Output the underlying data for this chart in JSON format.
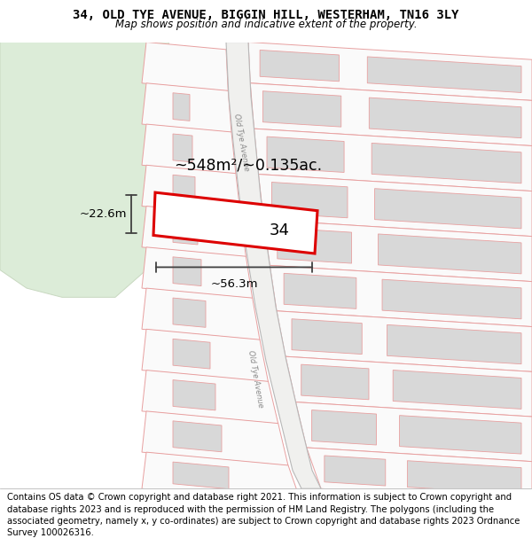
{
  "title_line1": "34, OLD TYE AVENUE, BIGGIN HILL, WESTERHAM, TN16 3LY",
  "title_line2": "Map shows position and indicative extent of the property.",
  "footer_text": "Contains OS data © Crown copyright and database right 2021. This information is subject to Crown copyright and database rights 2023 and is reproduced with the permission of HM Land Registry. The polygons (including the associated geometry, namely x, y co-ordinates) are subject to Crown copyright and database rights 2023 Ordnance Survey 100026316.",
  "area_label": "~548m²/~0.135ac.",
  "width_label": "~56.3m",
  "height_label": "~22.6m",
  "plot_number": "34",
  "road_label": "Old Tye Avenue",
  "road_label2": "Old Tye Avenue",
  "map_bg": "#ffffff",
  "plot_line_color": "#e8a0a0",
  "plot_fill": "#f8f8f8",
  "building_fill": "#d8d8d8",
  "building_outline": "#c0c0c0",
  "green_color": "#dcecd8",
  "green_outline": "#c8d8c0",
  "road_fill": "#f0f0ee",
  "road_line": "#c0c0c0",
  "highlight_red": "#dd0000",
  "dim_color": "#404040",
  "title_fontsize": 10,
  "subtitle_fontsize": 8.5,
  "footer_fontsize": 7.2
}
